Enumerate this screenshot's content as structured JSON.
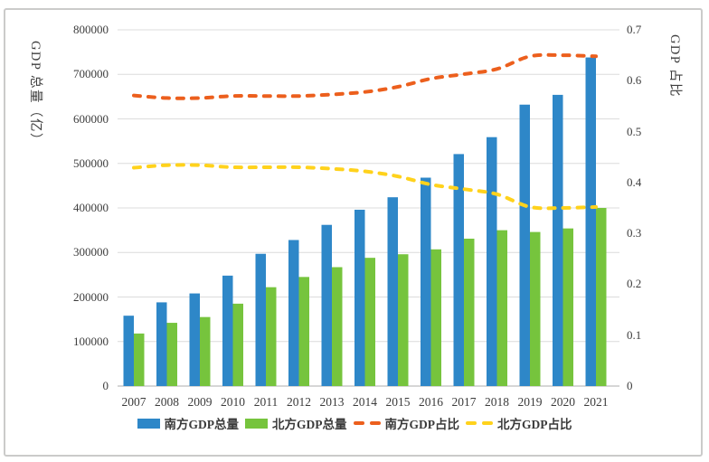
{
  "chart_data": {
    "type": "bar+line-combo",
    "categories": [
      "2007",
      "2008",
      "2009",
      "2010",
      "2011",
      "2012",
      "2013",
      "2014",
      "2015",
      "2016",
      "2017",
      "2018",
      "2019",
      "2020",
      "2021"
    ],
    "series": [
      {
        "name": "南方GDP总量",
        "type": "bar",
        "axis": "left",
        "color": "#2E87C8",
        "values": [
          158000,
          188000,
          208000,
          248000,
          297000,
          328000,
          362000,
          396000,
          424000,
          468000,
          521000,
          559000,
          632000,
          654000,
          738000
        ]
      },
      {
        "name": "北方GDP总量",
        "type": "bar",
        "axis": "left",
        "color": "#76C43D",
        "values": [
          118000,
          142000,
          155000,
          185000,
          222000,
          245000,
          267000,
          288000,
          296000,
          307000,
          331000,
          350000,
          346000,
          354000,
          400000
        ]
      },
      {
        "name": "南方GDP占比",
        "type": "line",
        "axis": "right",
        "color": "#EC5F1D",
        "dashed": true,
        "values": [
          0.571,
          0.566,
          0.566,
          0.57,
          0.57,
          0.57,
          0.573,
          0.578,
          0.588,
          0.604,
          0.613,
          0.623,
          0.648,
          0.65,
          0.648
        ]
      },
      {
        "name": "北方GDP占比",
        "type": "line",
        "axis": "right",
        "color": "#FFD21C",
        "dashed": true,
        "values": [
          0.429,
          0.434,
          0.434,
          0.43,
          0.43,
          0.43,
          0.427,
          0.422,
          0.412,
          0.396,
          0.387,
          0.377,
          0.352,
          0.35,
          0.352
        ]
      }
    ],
    "left_axis": {
      "title": "GDP 总量（亿）",
      "min": 0,
      "max": 800000,
      "step": 100000,
      "ticks": [
        "0",
        "100000",
        "200000",
        "300000",
        "400000",
        "500000",
        "600000",
        "700000",
        "800000"
      ]
    },
    "right_axis": {
      "title": "GDP 占比",
      "min": 0,
      "max": 0.7,
      "step": 0.1,
      "ticks": [
        "0",
        "0.1",
        "0.2",
        "0.3",
        "0.4",
        "0.5",
        "0.6",
        "0.7"
      ]
    },
    "grid": true,
    "legend_position": "bottom",
    "colors": {
      "grid": "#dcdcdc",
      "axis_line": "#c8c8c8",
      "text": "#3c3c3c",
      "border": "#cbcbca"
    }
  }
}
